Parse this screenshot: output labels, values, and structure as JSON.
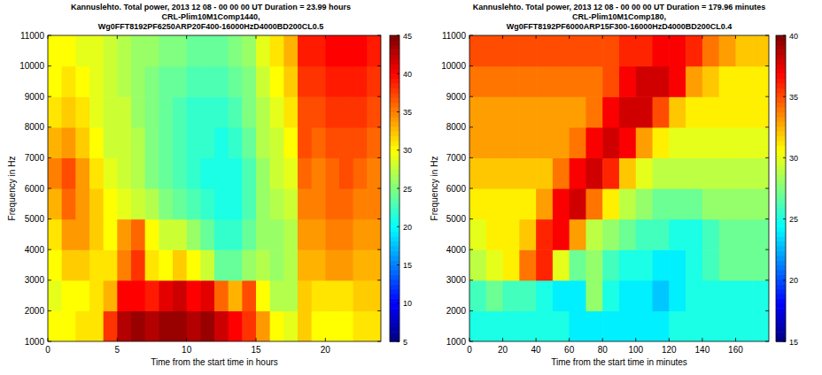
{
  "chart_data": [
    {
      "type": "heatmap",
      "title": "Kannuslehto. Total power, 2013 12 08 - 00 00 00 UT  Duration = 23.99 hours",
      "subtitle": [
        "CRL-Plim10M1Comp1440,",
        "Wg0FFT8192PF6250ARP20F400-16000HzD4000BD200CL0.5"
      ],
      "xlabel": "Time from the start time in hours",
      "ylabel": "Frequency in Hz",
      "x": [
        0.5,
        1.5,
        2.5,
        3.5,
        4.5,
        5.5,
        6.5,
        7.5,
        8.5,
        9.5,
        10.5,
        11.5,
        12.5,
        13.5,
        14.5,
        15.5,
        16.5,
        17.5,
        18.5,
        19.5,
        20.5,
        21.5,
        22.5,
        23.5
      ],
      "y": [
        1500,
        2500,
        3500,
        4500,
        5500,
        6500,
        7500,
        8500,
        9500,
        10500
      ],
      "values": [
        [
          30,
          30,
          31,
          31,
          38,
          43,
          44,
          43,
          44,
          44,
          43,
          44,
          42,
          40,
          38,
          34,
          30,
          29,
          32,
          30,
          30,
          30,
          31,
          31
        ],
        [
          29,
          30,
          30,
          31,
          33,
          40,
          40,
          39,
          41,
          42,
          40,
          41,
          36,
          33,
          37,
          30,
          27,
          27,
          32,
          31,
          31,
          31,
          32,
          32
        ],
        [
          30,
          32,
          32,
          31,
          31,
          35,
          38,
          31,
          30,
          32,
          30,
          28,
          24,
          24,
          26,
          27,
          26,
          27,
          33,
          33,
          34,
          34,
          33,
          33
        ],
        [
          31,
          34,
          34,
          32,
          30,
          34,
          36,
          30,
          28,
          28,
          26,
          24,
          22,
          22,
          24,
          26,
          26,
          27,
          34,
          34,
          35,
          35,
          34,
          34
        ],
        [
          33,
          36,
          34,
          32,
          30,
          29,
          28,
          27,
          25,
          24,
          23,
          22,
          21,
          21,
          23,
          26,
          27,
          28,
          35,
          35,
          36,
          36,
          35,
          35
        ],
        [
          35,
          37,
          34,
          31,
          29,
          28,
          27,
          25,
          24,
          23,
          22,
          21,
          21,
          21,
          23,
          26,
          28,
          29,
          36,
          35,
          36,
          37,
          36,
          35
        ],
        [
          33,
          34,
          32,
          30,
          28,
          28,
          27,
          25,
          24,
          23,
          22,
          22,
          21,
          22,
          24,
          27,
          28,
          30,
          37,
          36,
          37,
          37,
          37,
          36
        ],
        [
          31,
          32,
          31,
          29,
          28,
          28,
          26,
          25,
          24,
          23,
          22,
          22,
          22,
          23,
          25,
          27,
          29,
          31,
          37,
          37,
          38,
          38,
          38,
          37
        ],
        [
          30,
          31,
          30,
          29,
          28,
          27,
          26,
          25,
          24,
          24,
          23,
          23,
          23,
          24,
          25,
          28,
          30,
          32,
          38,
          38,
          39,
          39,
          39,
          38
        ],
        [
          30,
          30,
          29,
          29,
          28,
          27,
          26,
          26,
          25,
          25,
          24,
          24,
          24,
          25,
          26,
          29,
          31,
          33,
          39,
          39,
          40,
          40,
          40,
          39
        ]
      ],
      "xlim": [
        0,
        24
      ],
      "ylim": [
        1000,
        11000
      ],
      "xticks": [
        0,
        5,
        10,
        15,
        20
      ],
      "yticks": [
        1000,
        2000,
        3000,
        4000,
        5000,
        6000,
        7000,
        8000,
        9000,
        10000,
        11000
      ],
      "colorbar": {
        "range": [
          5,
          45
        ],
        "ticks": [
          5,
          10,
          15,
          20,
          25,
          30,
          35,
          40,
          45
        ]
      }
    },
    {
      "type": "heatmap",
      "title": "Kannuslehto. Total power, 2013 12 08 - 00 00 00 UT  Duration = 179.96 minutes",
      "subtitle": [
        "CRL-Plim10M1Comp180,",
        "Wg0FFT8192PF6000ARP15F300-16000HzD4000BD200CL0.4"
      ],
      "xlabel": "Time from the start time in minutes",
      "ylabel": "Frequency in Hz",
      "x": [
        5,
        15,
        25,
        35,
        45,
        55,
        65,
        75,
        85,
        95,
        105,
        115,
        125,
        135,
        145,
        155,
        165,
        175
      ],
      "y": [
        1500,
        2500,
        3500,
        4500,
        5500,
        6500,
        7500,
        8500,
        9500,
        10500
      ],
      "values": [
        [
          25,
          25,
          25,
          25,
          25,
          25,
          24,
          24,
          24,
          24,
          24,
          24,
          25,
          25,
          25,
          25,
          25,
          25
        ],
        [
          26,
          27,
          26,
          26,
          25,
          24,
          24,
          28,
          25,
          24,
          24,
          23,
          24,
          25,
          25,
          25,
          25,
          25
        ],
        [
          29,
          30,
          31,
          34,
          36,
          30,
          27,
          28,
          26,
          25,
          25,
          24,
          24,
          25,
          26,
          27,
          27,
          27
        ],
        [
          30,
          31,
          31,
          32,
          36,
          37,
          33,
          29,
          28,
          27,
          26,
          26,
          25,
          25,
          26,
          27,
          27,
          27
        ],
        [
          31,
          31,
          31,
          31,
          33,
          37,
          38,
          34,
          31,
          29,
          28,
          27,
          27,
          27,
          28,
          28,
          28,
          28
        ],
        [
          32,
          32,
          32,
          32,
          32,
          34,
          37,
          38,
          36,
          32,
          30,
          29,
          29,
          29,
          29,
          29,
          29,
          29
        ],
        [
          33,
          33,
          33,
          33,
          33,
          33,
          34,
          37,
          38,
          37,
          33,
          31,
          30,
          30,
          30,
          30,
          30,
          30
        ],
        [
          33,
          33,
          33,
          33,
          33,
          33,
          33,
          34,
          37,
          38,
          38,
          35,
          32,
          31,
          31,
          31,
          31,
          31
        ],
        [
          34,
          34,
          34,
          34,
          34,
          34,
          34,
          34,
          35,
          37,
          38,
          38,
          37,
          33,
          32,
          31,
          31,
          31
        ],
        [
          35,
          35,
          35,
          35,
          35,
          35,
          35,
          35,
          35,
          36,
          36,
          37,
          37,
          36,
          34,
          33,
          32,
          32
        ]
      ],
      "xlim": [
        0,
        180
      ],
      "ylim": [
        1000,
        11000
      ],
      "xticks": [
        0,
        20,
        40,
        60,
        80,
        100,
        120,
        140,
        160
      ],
      "yticks": [
        1000,
        2000,
        3000,
        4000,
        5000,
        6000,
        7000,
        8000,
        9000,
        10000,
        11000
      ],
      "colorbar": {
        "range": [
          15,
          40
        ],
        "ticks": [
          15,
          20,
          25,
          30,
          35,
          40
        ]
      }
    }
  ]
}
